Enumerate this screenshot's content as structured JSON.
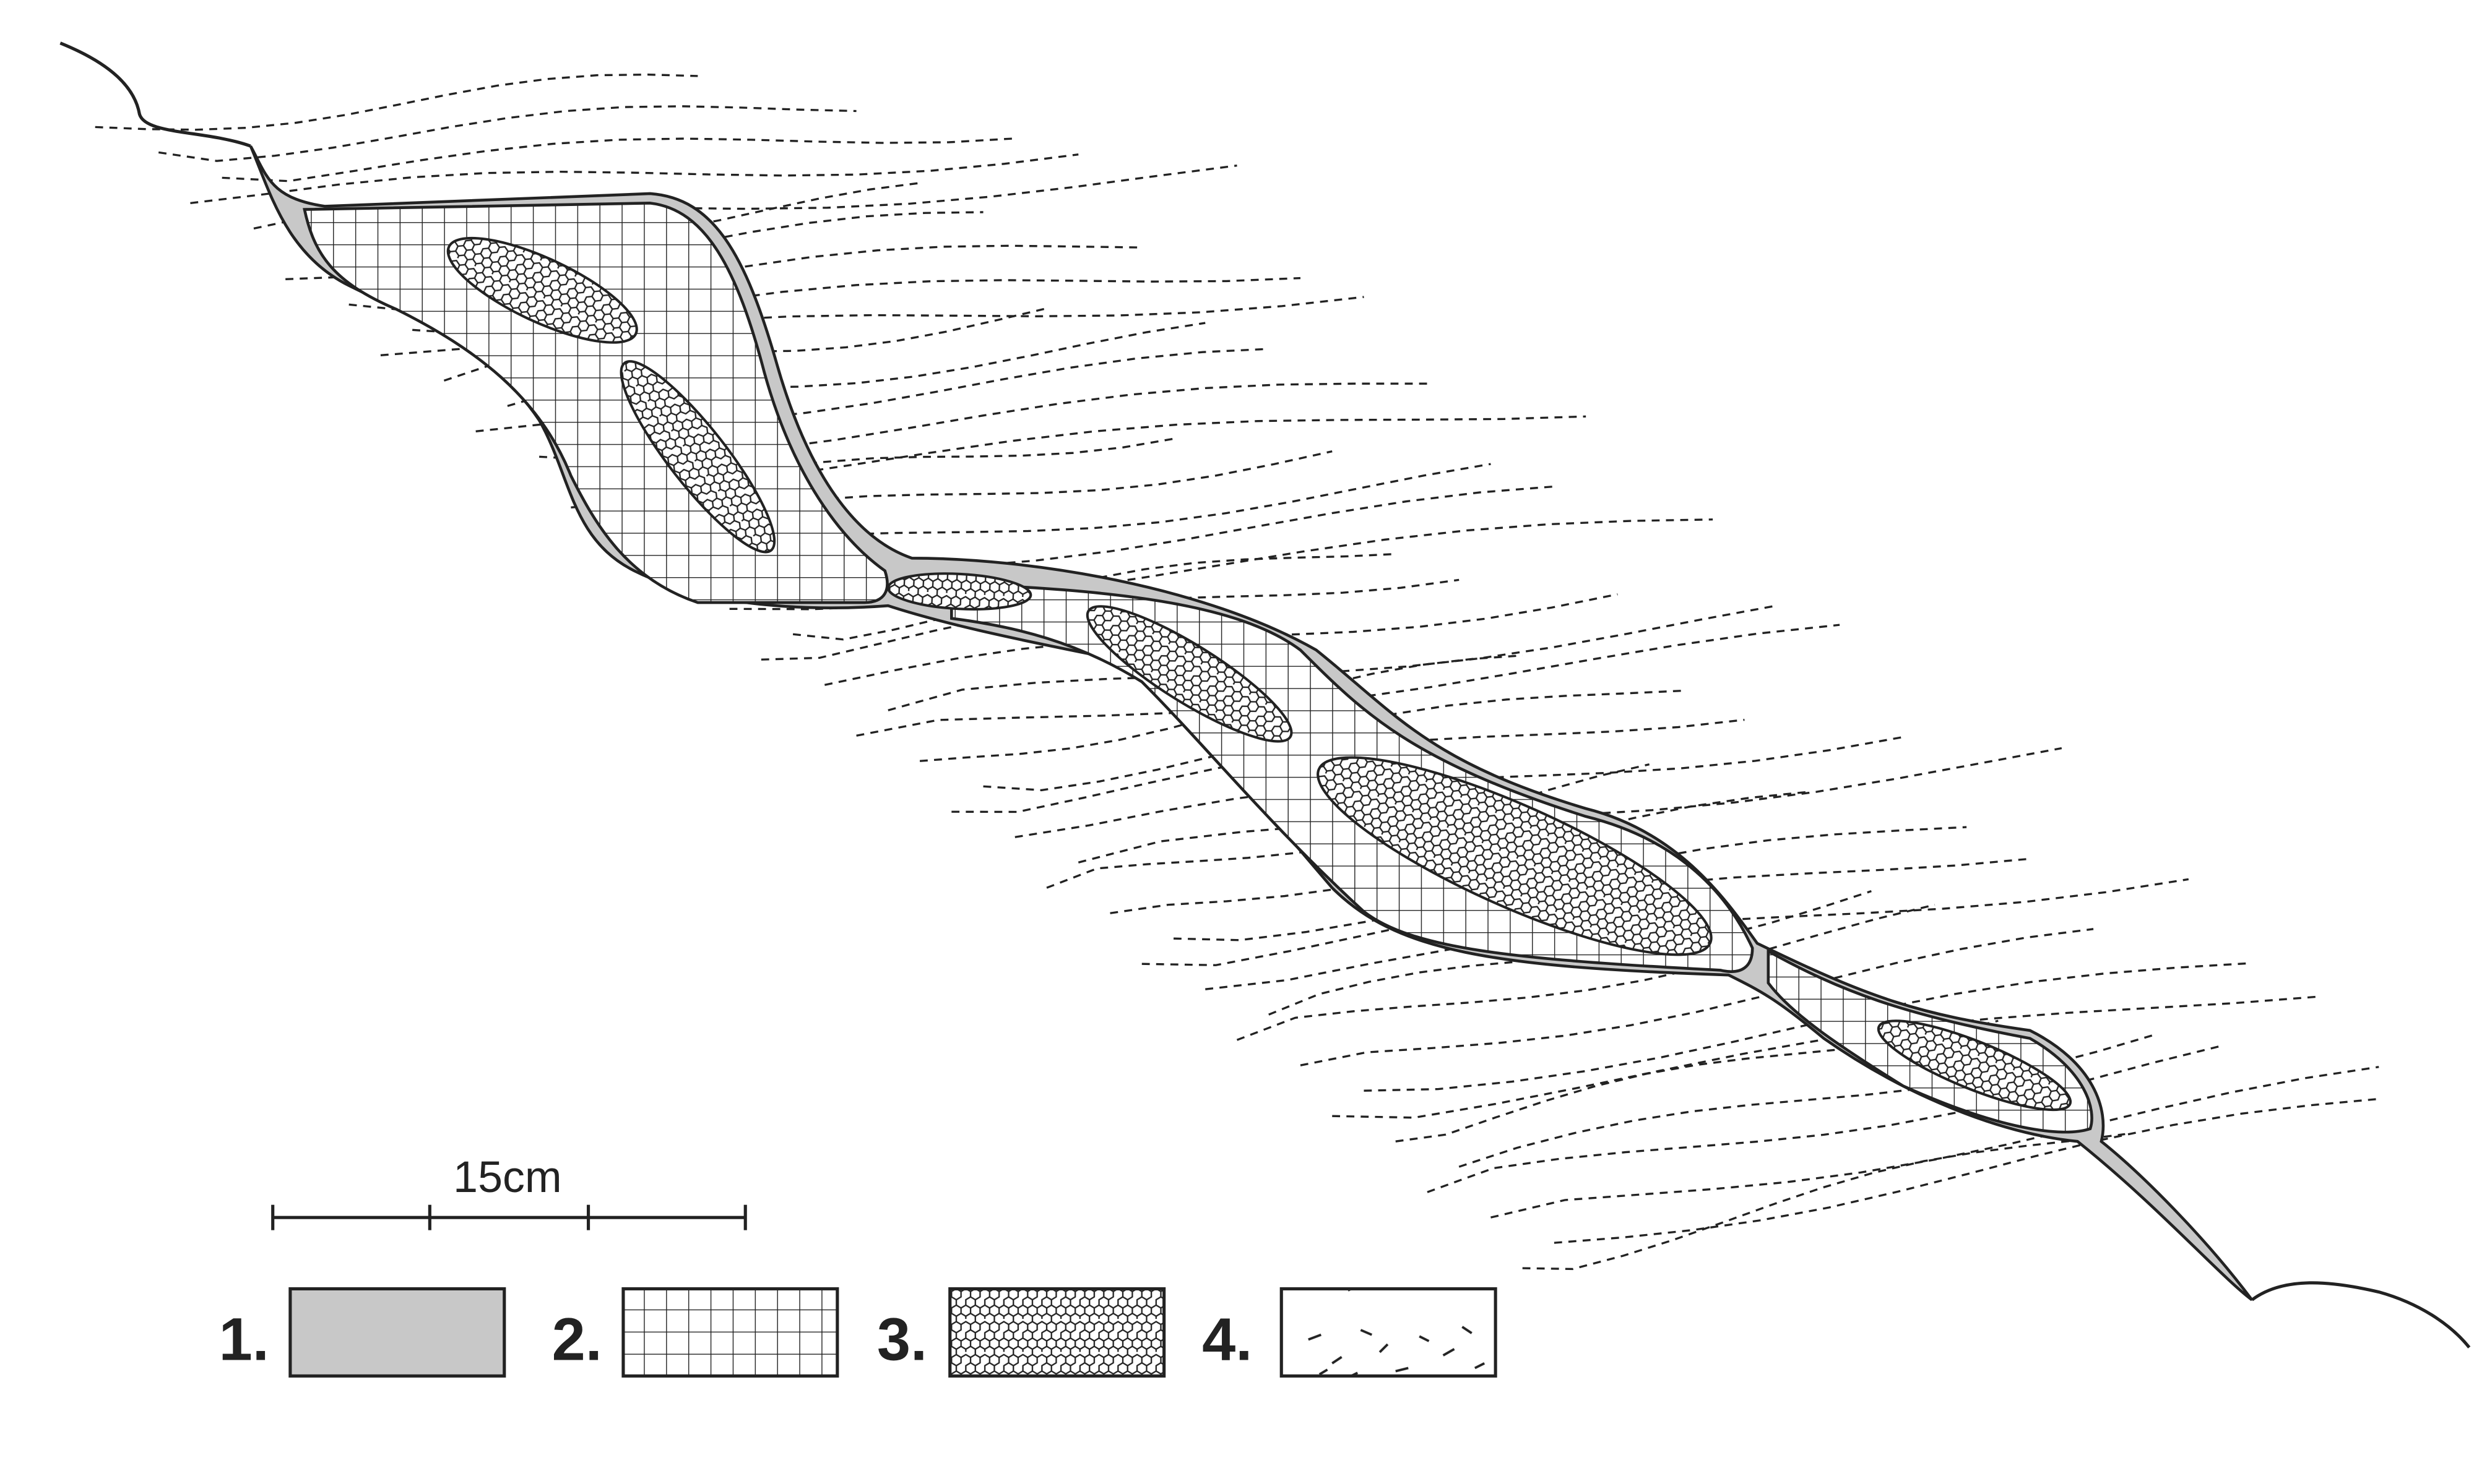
{
  "scale_bar": {
    "label": "15cm"
  },
  "legend": [
    {
      "label": "1."
    },
    {
      "label": "2."
    },
    {
      "label": "3."
    },
    {
      "label": "4."
    }
  ]
}
